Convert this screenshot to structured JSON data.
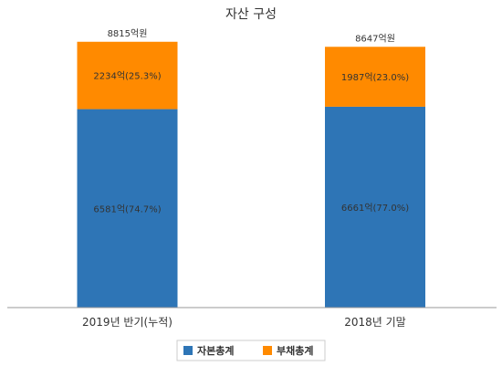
{
  "chart_data": {
    "type": "bar",
    "stacked": true,
    "title": "자산 구성",
    "categories": [
      "2019년 반기(누적)",
      "2018년 기말"
    ],
    "series": [
      {
        "name": "자본총계",
        "color": "#2e75b6",
        "values": [
          6581,
          6661
        ],
        "labels": [
          "6581억(74.7%)",
          "6661억(77.0%)"
        ]
      },
      {
        "name": "부채총계",
        "color": "#ff8a00",
        "values": [
          2234,
          1987
        ],
        "labels": [
          "2234억(25.3%)",
          "1987억(23.0%)"
        ]
      }
    ],
    "totals": [
      8815,
      8647
    ],
    "total_labels": [
      "8815억원",
      "8647억원"
    ],
    "ylim": [
      0,
      10200
    ],
    "grid": false,
    "legend_position": "bottom-center",
    "axis_color": "#999999"
  }
}
